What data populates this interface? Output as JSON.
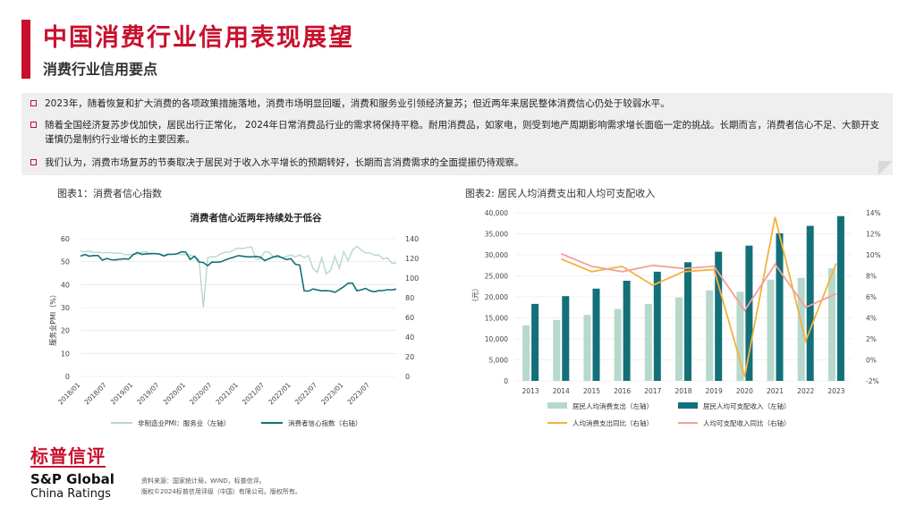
{
  "header": {
    "title": "中国消费行业信用表现展望",
    "subtitle": "消费行业信用要点"
  },
  "bullets": [
    "2023年，随着恢复和扩大消费的各项政策措施落地，消费市场明显回暖，消费和服务业引领经济复苏；但近两年来居民整体消费信心仍处于较弱水平。",
    "随着全国经济复苏步伐加快，居民出行正常化，  2024年日常消费品行业的需求将保持平稳。耐用消费品，如家电，则受到地产周期影响需求增长面临一定的挑战。长期而言，消费者信心不足、大额开支谨慎仍是制约行业增长的主要因素。",
    "我们认为，消费市场复苏的节奏取决于居民对于收入水平增长的预期转好，长期而言消费需求的全面提振仍待观察。"
  ],
  "figure1": {
    "label": "图表1：消费者信心指数"
  },
  "figure2": {
    "label": "图表2: 居民人均消费支出和人均可支配收入"
  },
  "colors": {
    "brand_red": "#c8102e",
    "light_series": "#b7d8cc",
    "dark_series": "#137078",
    "yellow": "#f2b33d",
    "pink": "#f4a09a"
  },
  "chart_data": [
    {
      "type": "line",
      "title": "消费者信心近两年持续处于低谷",
      "ylabel_left": "服务业PMI（%）",
      "ylim_left": [
        0,
        60
      ],
      "yticks_left": [
        "0",
        "10",
        "20",
        "30",
        "40",
        "50",
        "60"
      ],
      "ylim_right": [
        0,
        140
      ],
      "yticks_right": [
        "0",
        "20",
        "40",
        "60",
        "80",
        "100",
        "120",
        "140"
      ],
      "x_ticks": [
        "2018/01",
        "2018/07",
        "2019/01",
        "2019/07",
        "2020/01",
        "2020/07",
        "2021/01",
        "2021/07",
        "2022/01",
        "2022/07",
        "2023/01",
        "2023/07"
      ],
      "series": [
        {
          "name": "非制造业PMI：服务业（左轴）",
          "axis": "left",
          "values": [
            54.6,
            54.3,
            54.6,
            54.0,
            54.1,
            53.9,
            54.0,
            53.9,
            53.6,
            53.8,
            53.1,
            53.0,
            53.3,
            53.1,
            54.1,
            54.3,
            53.3,
            53.4,
            53.4,
            52.9,
            53.5,
            53.1,
            53.5,
            53.0,
            53.1,
            53.0,
            52.1,
            51.0,
            30.1,
            51.8,
            52.1,
            52.3,
            53.4,
            54.1,
            54.2,
            55.2,
            55.9,
            55.7,
            56.2,
            56.4,
            51.1,
            51.3,
            54.3,
            54.2,
            52.0,
            52.0,
            51.7,
            52.3,
            53.0,
            52.1,
            53.0,
            51.7,
            52.7,
            47.1,
            45.3,
            51.8,
            44.7,
            46.2,
            52.3,
            47.1,
            54.3,
            50.4,
            55.0,
            56.7,
            55.1,
            53.8,
            53.8,
            52.8,
            53.0,
            51.1,
            51.7,
            49.3,
            49.5
          ]
        },
        {
          "name": "消费者信心指数（右轴）",
          "axis": "right",
          "values": [
            122.3,
            124.0,
            122.3,
            122.9,
            122.9,
            118.2,
            119.9,
            118.6,
            118.5,
            119.1,
            119.6,
            119.3,
            123.7,
            126.0,
            124.1,
            124.6,
            124.8,
            125.0,
            124.4,
            122.4,
            124.1,
            124.2,
            124.6,
            126.6,
            126.4,
            118.9,
            122.2,
            116.4,
            115.8,
            112.6,
            116.3,
            116.1,
            116.5,
            118.5,
            120.0,
            121.4,
            122.8,
            122.2,
            121.5,
            121.5,
            122.0,
            121.4,
            117.8,
            119.6,
            121.5,
            122.6,
            120.5,
            118.8,
            119.6,
            114.1,
            113.2,
            87.0,
            86.7,
            88.9,
            87.9,
            87.0,
            87.2,
            86.8,
            85.5,
            88.3,
            91.2,
            94.7,
            94.9,
            87.1,
            88.1,
            89.5,
            87.1,
            86.1,
            87.2,
            87.3,
            88.2,
            87.9,
            88.8
          ]
        }
      ],
      "legend": "bottom"
    },
    {
      "type": "bar+line",
      "categories": [
        "2013",
        "2014",
        "2015",
        "2016",
        "2017",
        "2018",
        "2019",
        "2020",
        "2021",
        "2022",
        "2023"
      ],
      "ylabel_left": "（元）",
      "ylim_left": [
        0,
        40000
      ],
      "yticks_left": [
        "0",
        "5,000",
        "10,000",
        "15,000",
        "20,000",
        "25,000",
        "30,000",
        "35,000",
        "40,000"
      ],
      "ylim_right": [
        -2,
        14
      ],
      "yticks_right": [
        "-2%",
        "0%",
        "2%",
        "4%",
        "6%",
        "8%",
        "10%",
        "12%",
        "14%"
      ],
      "series": [
        {
          "name": "居民人均消费支出（左轴）",
          "type": "bar",
          "axis": "left",
          "values": [
            13220,
            14491,
            15712,
            17111,
            18322,
            19853,
            21559,
            21210,
            24100,
            24538,
            26796
          ]
        },
        {
          "name": "居民人均可支配收入（左轴）",
          "type": "bar",
          "axis": "left",
          "values": [
            18311,
            20167,
            21966,
            23821,
            25974,
            28228,
            30733,
            32189,
            35128,
            36883,
            39218
          ]
        },
        {
          "name": "人均消费支出同比（右轴）",
          "type": "line",
          "axis": "right",
          "values": [
            null,
            9.6,
            8.4,
            8.9,
            7.1,
            8.4,
            8.6,
            -1.6,
            13.6,
            1.8,
            9.2
          ]
        },
        {
          "name": "人均可支配收入同比（右轴）",
          "type": "line",
          "axis": "right",
          "values": [
            null,
            10.1,
            8.9,
            8.4,
            9.0,
            8.7,
            8.9,
            4.7,
            9.1,
            5.0,
            6.3
          ]
        }
      ],
      "legend": "bottom"
    }
  ],
  "footer": {
    "logo_cn": "标普信评",
    "logo_sp": "S&P Global",
    "logo_cr": "China Ratings",
    "source_line1": "资料来源：国家统计局，WIND，标普信评。",
    "source_line2": "版权©2024标普信用评级（中国）有限公司。版权所有。"
  }
}
